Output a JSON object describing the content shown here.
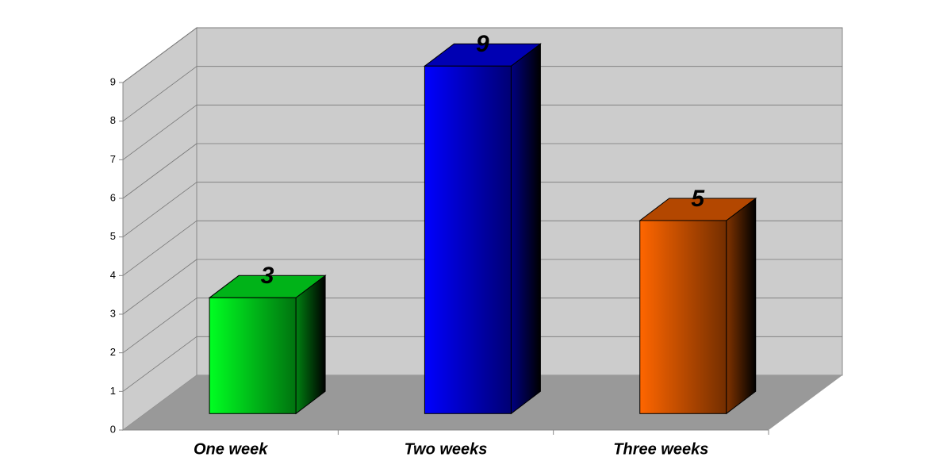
{
  "chart_data": {
    "type": "bar3d",
    "categories": [
      "One week",
      "Two weeks",
      "Three weeks"
    ],
    "values": [
      3,
      9,
      5
    ],
    "colors": [
      "#00ff22",
      "#0000ff",
      "#ff6600"
    ],
    "ylim": [
      0,
      9
    ],
    "yticks": [
      0,
      1,
      2,
      3,
      4,
      5,
      6,
      7,
      8,
      9
    ],
    "grid": true
  }
}
